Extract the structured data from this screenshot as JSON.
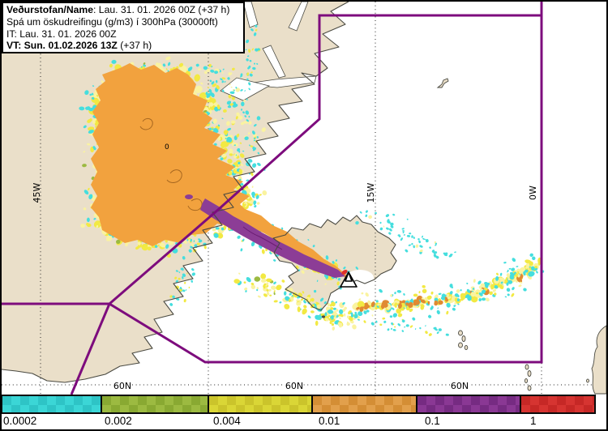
{
  "header": {
    "name_label": "Veðurstofan/Name",
    "name_rest": ": Lau. 31. 01. 2026 00Z (+37 h)",
    "line2": "Spá um öskudreifingu (g/m3) í 300hPa (30000ft)",
    "line3": "IT: Lau. 31. 01. 2026 00Z",
    "vt_label": "VT: Sun. 01.02.2026 13Z",
    "vt_rest": " (+37 h)"
  },
  "map": {
    "meridian_labels": [
      "45W",
      "15W",
      "0W"
    ],
    "parallel_label": "60N",
    "contour_label": "0",
    "marker": "volcano-triangle"
  },
  "colorbar": {
    "segments": [
      {
        "label": "0.0002",
        "color": "#3BD6D6",
        "color_alt": "#2EC4C6"
      },
      {
        "label": "0.002",
        "color": "#9CBA41",
        "color_alt": "#89A932"
      },
      {
        "label": "0.004",
        "color": "#DAD636",
        "color_alt": "#CBC42B"
      },
      {
        "label": "0.01",
        "color": "#E2A04C",
        "color_alt": "#D48E35"
      },
      {
        "label": "0.1",
        "color": "#8A3894",
        "color_alt": "#762B82"
      },
      {
        "label": "1",
        "color": "#D63431",
        "color_alt": "#C62826"
      }
    ]
  },
  "colors": {
    "land": "#EADFC9",
    "sea": "#FFFFFF",
    "coast": "#4A4A42",
    "boundary": "#7D0C7D",
    "graticule": "#222222",
    "ash_cyan": "#45DEDE",
    "ash_pale_yellow": "#FAF3A0",
    "ash_yellow": "#F2E943",
    "ash_green": "#9CBA41",
    "ash_orange": "#F2A23E",
    "ash_orange_dark": "#E08A32",
    "ash_purple": "#8C3D96",
    "ash_red": "#E03028"
  }
}
